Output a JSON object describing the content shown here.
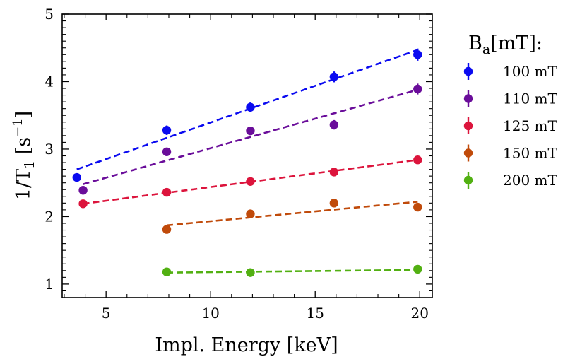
{
  "chart_data": {
    "type": "scatter",
    "title": "",
    "xlabel": "Impl. Energy [keV]",
    "ylabel_parts": {
      "main": "1/T",
      "sub": "1",
      "unit_open": " [s",
      "sup": "−1",
      "unit_close": "]"
    },
    "xlim": [
      2.9,
      20.6
    ],
    "ylim": [
      0.8,
      5.0
    ],
    "x_ticks": [
      5,
      10,
      15,
      20
    ],
    "y_ticks": [
      1,
      2,
      3,
      4,
      5
    ],
    "grid": false,
    "legend": {
      "position": "right",
      "title_parts": {
        "main": "B",
        "sub": "a",
        "rest": "[mT]:"
      }
    },
    "series": [
      {
        "name": "100 mT",
        "color": "#0a0af0",
        "x": [
          3.6,
          7.9,
          11.9,
          15.9,
          19.9
        ],
        "y": [
          2.58,
          3.28,
          3.62,
          4.07,
          4.4
        ],
        "yerr": [
          0.04,
          0.07,
          0.07,
          0.08,
          0.09
        ],
        "fit": [
          [
            3.6,
            2.7
          ],
          [
            19.9,
            4.47
          ]
        ]
      },
      {
        "name": "110 mT",
        "color": "#6a0d9a",
        "x": [
          3.9,
          7.9,
          11.9,
          15.9,
          19.9
        ],
        "y": [
          2.39,
          2.96,
          3.27,
          3.36,
          3.89
        ],
        "yerr": [
          0.04,
          0.05,
          0.06,
          0.07,
          0.08
        ],
        "fit": [
          [
            3.9,
            2.48
          ],
          [
            19.9,
            3.88
          ]
        ]
      },
      {
        "name": "125 mT",
        "color": "#dc143c",
        "x": [
          3.9,
          7.9,
          11.9,
          15.9,
          19.9
        ],
        "y": [
          2.19,
          2.36,
          2.52,
          2.66,
          2.84
        ],
        "yerr": [
          0.03,
          0.03,
          0.03,
          0.03,
          0.03
        ],
        "fit": [
          [
            3.9,
            2.19
          ],
          [
            19.9,
            2.84
          ]
        ]
      },
      {
        "name": "150 mT",
        "color": "#c04a0a",
        "x": [
          7.9,
          11.9,
          15.9,
          19.9
        ],
        "y": [
          1.81,
          2.04,
          2.2,
          2.14
        ],
        "yerr": [
          0.03,
          0.03,
          0.03,
          0.03
        ],
        "fit": [
          [
            7.9,
            1.87
          ],
          [
            19.9,
            2.22
          ]
        ]
      },
      {
        "name": "200 mT",
        "color": "#52b012",
        "x": [
          7.9,
          11.9,
          19.9
        ],
        "y": [
          1.18,
          1.17,
          1.22
        ],
        "yerr": [
          0.02,
          0.02,
          0.02
        ],
        "fit": [
          [
            7.9,
            1.17
          ],
          [
            19.9,
            1.21
          ]
        ]
      }
    ]
  }
}
